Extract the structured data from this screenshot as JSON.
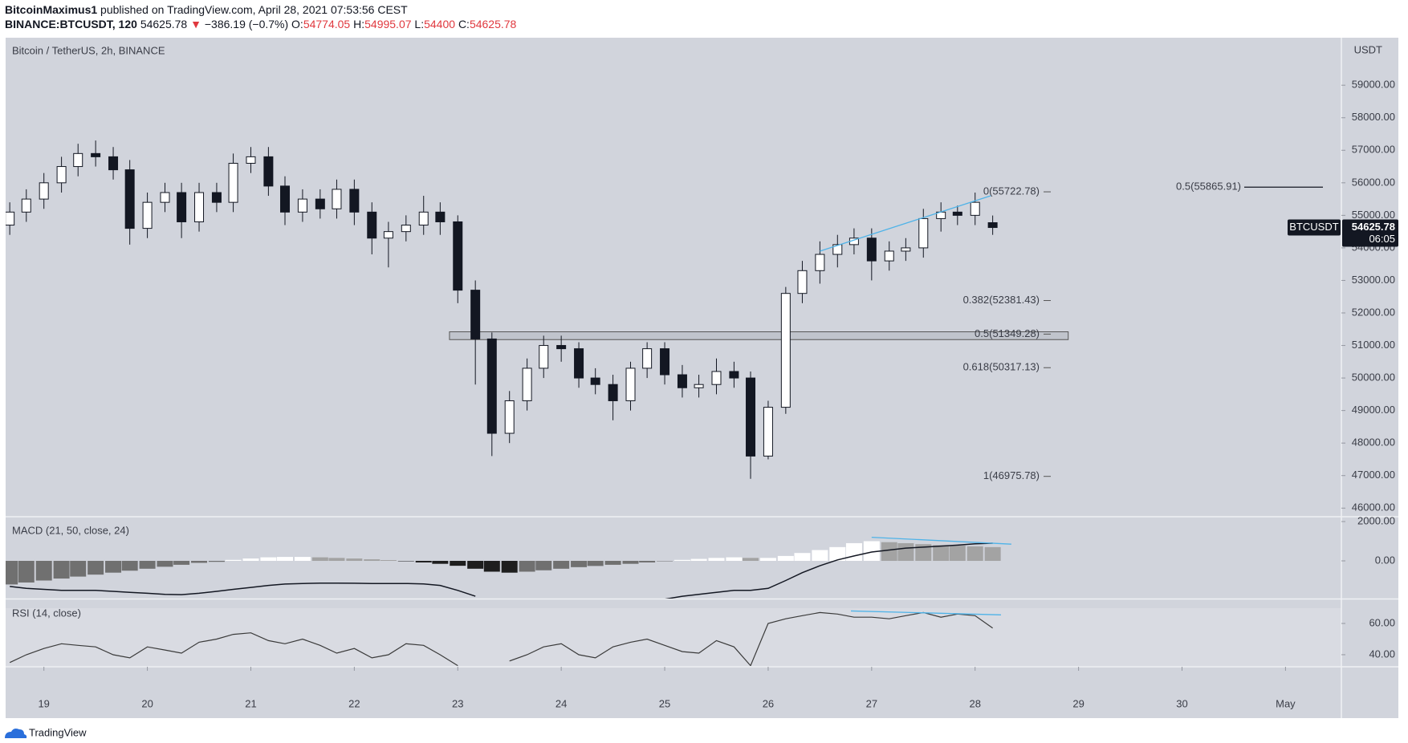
{
  "header": {
    "author": "BitcoinMaximus1",
    "published": "published on TradingView.com, April 28, 2021 07:53:56 CEST",
    "symbol": "BINANCE:BTCUSDT, 120",
    "change": "−386.19 (−0.7%)",
    "open_label": "O:",
    "high_label": "H:",
    "low_label": "L:",
    "close_label": "C:"
  },
  "footer": {
    "brand": "TradingView"
  },
  "chart_data": [
    {
      "type": "candlestick",
      "title": "Bitcoin / TetherUS, 2h, BINANCE",
      "unit": "USDT",
      "x": [
        18.67,
        18.83,
        19,
        19.17,
        19.33,
        19.5,
        19.67,
        19.83,
        20,
        20.17,
        20.33,
        20.5,
        20.67,
        20.83,
        21,
        21.17,
        21.33,
        21.5,
        21.67,
        21.83,
        22,
        22.17,
        22.33,
        22.5,
        22.67,
        22.83,
        23,
        23.17,
        23.33,
        23.5,
        23.67,
        23.83,
        24,
        24.17,
        24.33,
        24.5,
        24.67,
        24.83,
        25,
        25.17,
        25.33,
        25.5,
        25.67,
        25.83,
        26,
        26.17,
        26.33,
        26.5,
        26.67,
        26.83,
        27,
        27.17,
        27.33,
        27.5,
        27.67,
        27.83,
        28,
        28.17
      ],
      "open": [
        54700,
        55100,
        55500,
        56000,
        56500,
        56900,
        56800,
        56400,
        54600,
        55400,
        55700,
        54800,
        55700,
        55400,
        56600,
        56800,
        55900,
        55100,
        55500,
        55200,
        55800,
        55100,
        54300,
        54500,
        54700,
        55100,
        54800,
        52700,
        51200,
        48300,
        49300,
        50300,
        51000,
        50900,
        50000,
        49800,
        49300,
        50300,
        50900,
        50100,
        49700,
        49800,
        50200,
        50000,
        47600,
        49100,
        52600,
        53300,
        53800,
        54100,
        54300,
        53600,
        53900,
        54000,
        54900,
        55100,
        55000,
        54774.05
      ],
      "high": [
        55400,
        55800,
        56300,
        56800,
        57200,
        57300,
        57100,
        56700,
        55700,
        56000,
        56000,
        56000,
        56000,
        56900,
        57100,
        57100,
        56200,
        55800,
        55800,
        56100,
        56100,
        55400,
        54800,
        55000,
        55600,
        55400,
        55000,
        53000,
        51400,
        49600,
        50600,
        51300,
        51300,
        51100,
        50300,
        50100,
        50500,
        51100,
        51100,
        50400,
        50100,
        50600,
        50500,
        50200,
        49300,
        52800,
        53600,
        54200,
        54400,
        54600,
        54600,
        54200,
        54300,
        55200,
        55400,
        55300,
        55700,
        54995.07
      ],
      "low": [
        54400,
        54800,
        55200,
        55700,
        56200,
        56500,
        56100,
        54100,
        54300,
        55100,
        54300,
        54500,
        55100,
        55100,
        56300,
        55600,
        54700,
        54800,
        54900,
        54900,
        54700,
        53800,
        53400,
        54200,
        54400,
        54400,
        52300,
        49800,
        47600,
        48000,
        49000,
        50000,
        50500,
        49700,
        49500,
        48700,
        49000,
        50000,
        49800,
        49400,
        49400,
        49500,
        49700,
        46900,
        47500,
        48900,
        52300,
        52900,
        53400,
        53800,
        53000,
        53300,
        53600,
        53700,
        54500,
        54700,
        54700,
        54400
      ],
      "close": [
        55100,
        55500,
        56000,
        56500,
        56900,
        56800,
        56400,
        54600,
        55400,
        55700,
        54800,
        55700,
        55400,
        56600,
        56800,
        55900,
        55100,
        55500,
        55200,
        55800,
        55100,
        54300,
        54500,
        54700,
        55100,
        54800,
        52700,
        51200,
        48300,
        49300,
        50300,
        51000,
        50900,
        50000,
        49800,
        49300,
        50300,
        50900,
        50100,
        49700,
        49800,
        50200,
        50000,
        47600,
        49100,
        52600,
        53300,
        53800,
        54100,
        54300,
        53600,
        53900,
        54000,
        54900,
        55100,
        55000,
        55400,
        54625.78
      ],
      "up_color": "#ffffff",
      "down_color": "#131722",
      "xlim": [
        18.63,
        31.54
      ],
      "xticks": [
        19,
        20,
        21,
        22,
        23,
        24,
        25,
        26,
        27,
        28,
        29,
        30,
        {
          "value": 31,
          "label": "May"
        }
      ],
      "ylim": [
        45760,
        60460
      ],
      "yticks": [
        {
          "value": 46000,
          "label": "46000.00"
        },
        {
          "value": 47000,
          "label": "47000.00"
        },
        {
          "value": 48000,
          "label": "48000.00"
        },
        {
          "value": 49000,
          "label": "49000.00"
        },
        {
          "value": 50000,
          "label": "50000.00"
        },
        {
          "value": 51000,
          "label": "51000.00"
        },
        {
          "value": 52000,
          "label": "52000.00"
        },
        {
          "value": 53000,
          "label": "53000.00"
        },
        {
          "value": 54000,
          "label": "54000.00"
        },
        {
          "value": 55000,
          "label": "55000.00"
        },
        {
          "value": 56000,
          "label": "56000.00"
        },
        {
          "value": 57000,
          "label": "57000.00"
        },
        {
          "value": 58000,
          "label": "58000.00"
        },
        {
          "value": 59000,
          "label": "59000.00"
        }
      ],
      "fib_levels": [
        {
          "value": 55722.78,
          "label": "0(55722.78)"
        },
        {
          "value": 52381.43,
          "label": "0.382(52381.43)"
        },
        {
          "value": 51349.28,
          "label": "0.5(51349.28)"
        },
        {
          "value": 50317.13,
          "label": "0.618(50317.13)"
        },
        {
          "value": 46975.78,
          "label": "1(46975.78)"
        }
      ],
      "target": {
        "value": 55865.91,
        "label": "0.5(55865.91)"
      },
      "zone": {
        "xlim": [
          22.92,
          28.9
        ],
        "ylim": [
          51180,
          51420
        ]
      },
      "trendline": {
        "x": [
          26.5,
          28.15
        ],
        "y": [
          53900,
          55600
        ],
        "color": "#4fb3e8"
      },
      "last_price": {
        "symbol": "BTCUSDT",
        "countdown": "06:05"
      }
    },
    {
      "type": "macd",
      "title": "MACD (21, 50, close, 24)",
      "histogram": [
        -1200,
        -1100,
        -1000,
        -900,
        -800,
        -700,
        -600,
        -500,
        -400,
        -300,
        -200,
        -100,
        -50,
        50,
        120,
        180,
        200,
        200,
        180,
        150,
        120,
        80,
        40,
        -20,
        -80,
        -150,
        -250,
        -400,
        -550,
        -600,
        -550,
        -480,
        -400,
        -320,
        -260,
        -200,
        -150,
        -80,
        -20,
        50,
        100,
        150,
        180,
        150,
        150,
        250,
        400,
        550,
        700,
        900,
        1000,
        950,
        900,
        850,
        800,
        780,
        740,
        700
      ],
      "macd": [
        -1300,
        -1400,
        -1450,
        -1500,
        -1500,
        -1500,
        -1550,
        -1600,
        -1650,
        -1700,
        -1720,
        -1650,
        -1550,
        -1450,
        -1350,
        -1250,
        -1180,
        -1150,
        -1130,
        -1130,
        -1140,
        -1150,
        -1150,
        -1150,
        -1170,
        -1250,
        -1500,
        -1800,
        null,
        null,
        null,
        null,
        null,
        null,
        null,
        null,
        null,
        null,
        -1950,
        -1800,
        -1700,
        -1600,
        -1500,
        -1500,
        -1400,
        -1000,
        -600,
        -250,
        50,
        250,
        450,
        550,
        650,
        700,
        750,
        800,
        870,
        900
      ],
      "colors": {
        "positive_rising": "#ffffff",
        "positive_falling": "#a3a3a3",
        "negative_falling": "#1e1e1e",
        "negative_rising": "#707070",
        "line": "#131722"
      },
      "ylim": [
        -1918,
        2204
      ],
      "yticks": [
        {
          "value": 0,
          "label": "0.00"
        },
        {
          "value": 2000,
          "label": "2000.00"
        }
      ],
      "trendline": {
        "x": [
          27.0,
          28.35
        ],
        "y": [
          1200,
          850
        ],
        "color": "#4fb3e8"
      }
    },
    {
      "type": "line",
      "title": "RSI (14, close)",
      "color": "#3a3a3a",
      "values": [
        35,
        40,
        44,
        47,
        46,
        45,
        40,
        38,
        45,
        43,
        41,
        48,
        50,
        53,
        54,
        49,
        47,
        50,
        46,
        41,
        44,
        38,
        40,
        47,
        46,
        40,
        33,
        null,
        null,
        36,
        40,
        45,
        47,
        40,
        38,
        45,
        48,
        50,
        46,
        42,
        41,
        49,
        45,
        33,
        60,
        63,
        65,
        67,
        66,
        64,
        64,
        63,
        65,
        67,
        64,
        66,
        65,
        57
      ],
      "ylim": [
        32.8,
        75.4
      ],
      "yticks": [
        {
          "value": 40,
          "label": "40.00"
        },
        {
          "value": 60,
          "label": "60.00"
        }
      ],
      "trendline": {
        "x": [
          26.8,
          28.25
        ],
        "y": [
          68,
          65.5
        ],
        "color": "#4fb3e8"
      }
    }
  ]
}
